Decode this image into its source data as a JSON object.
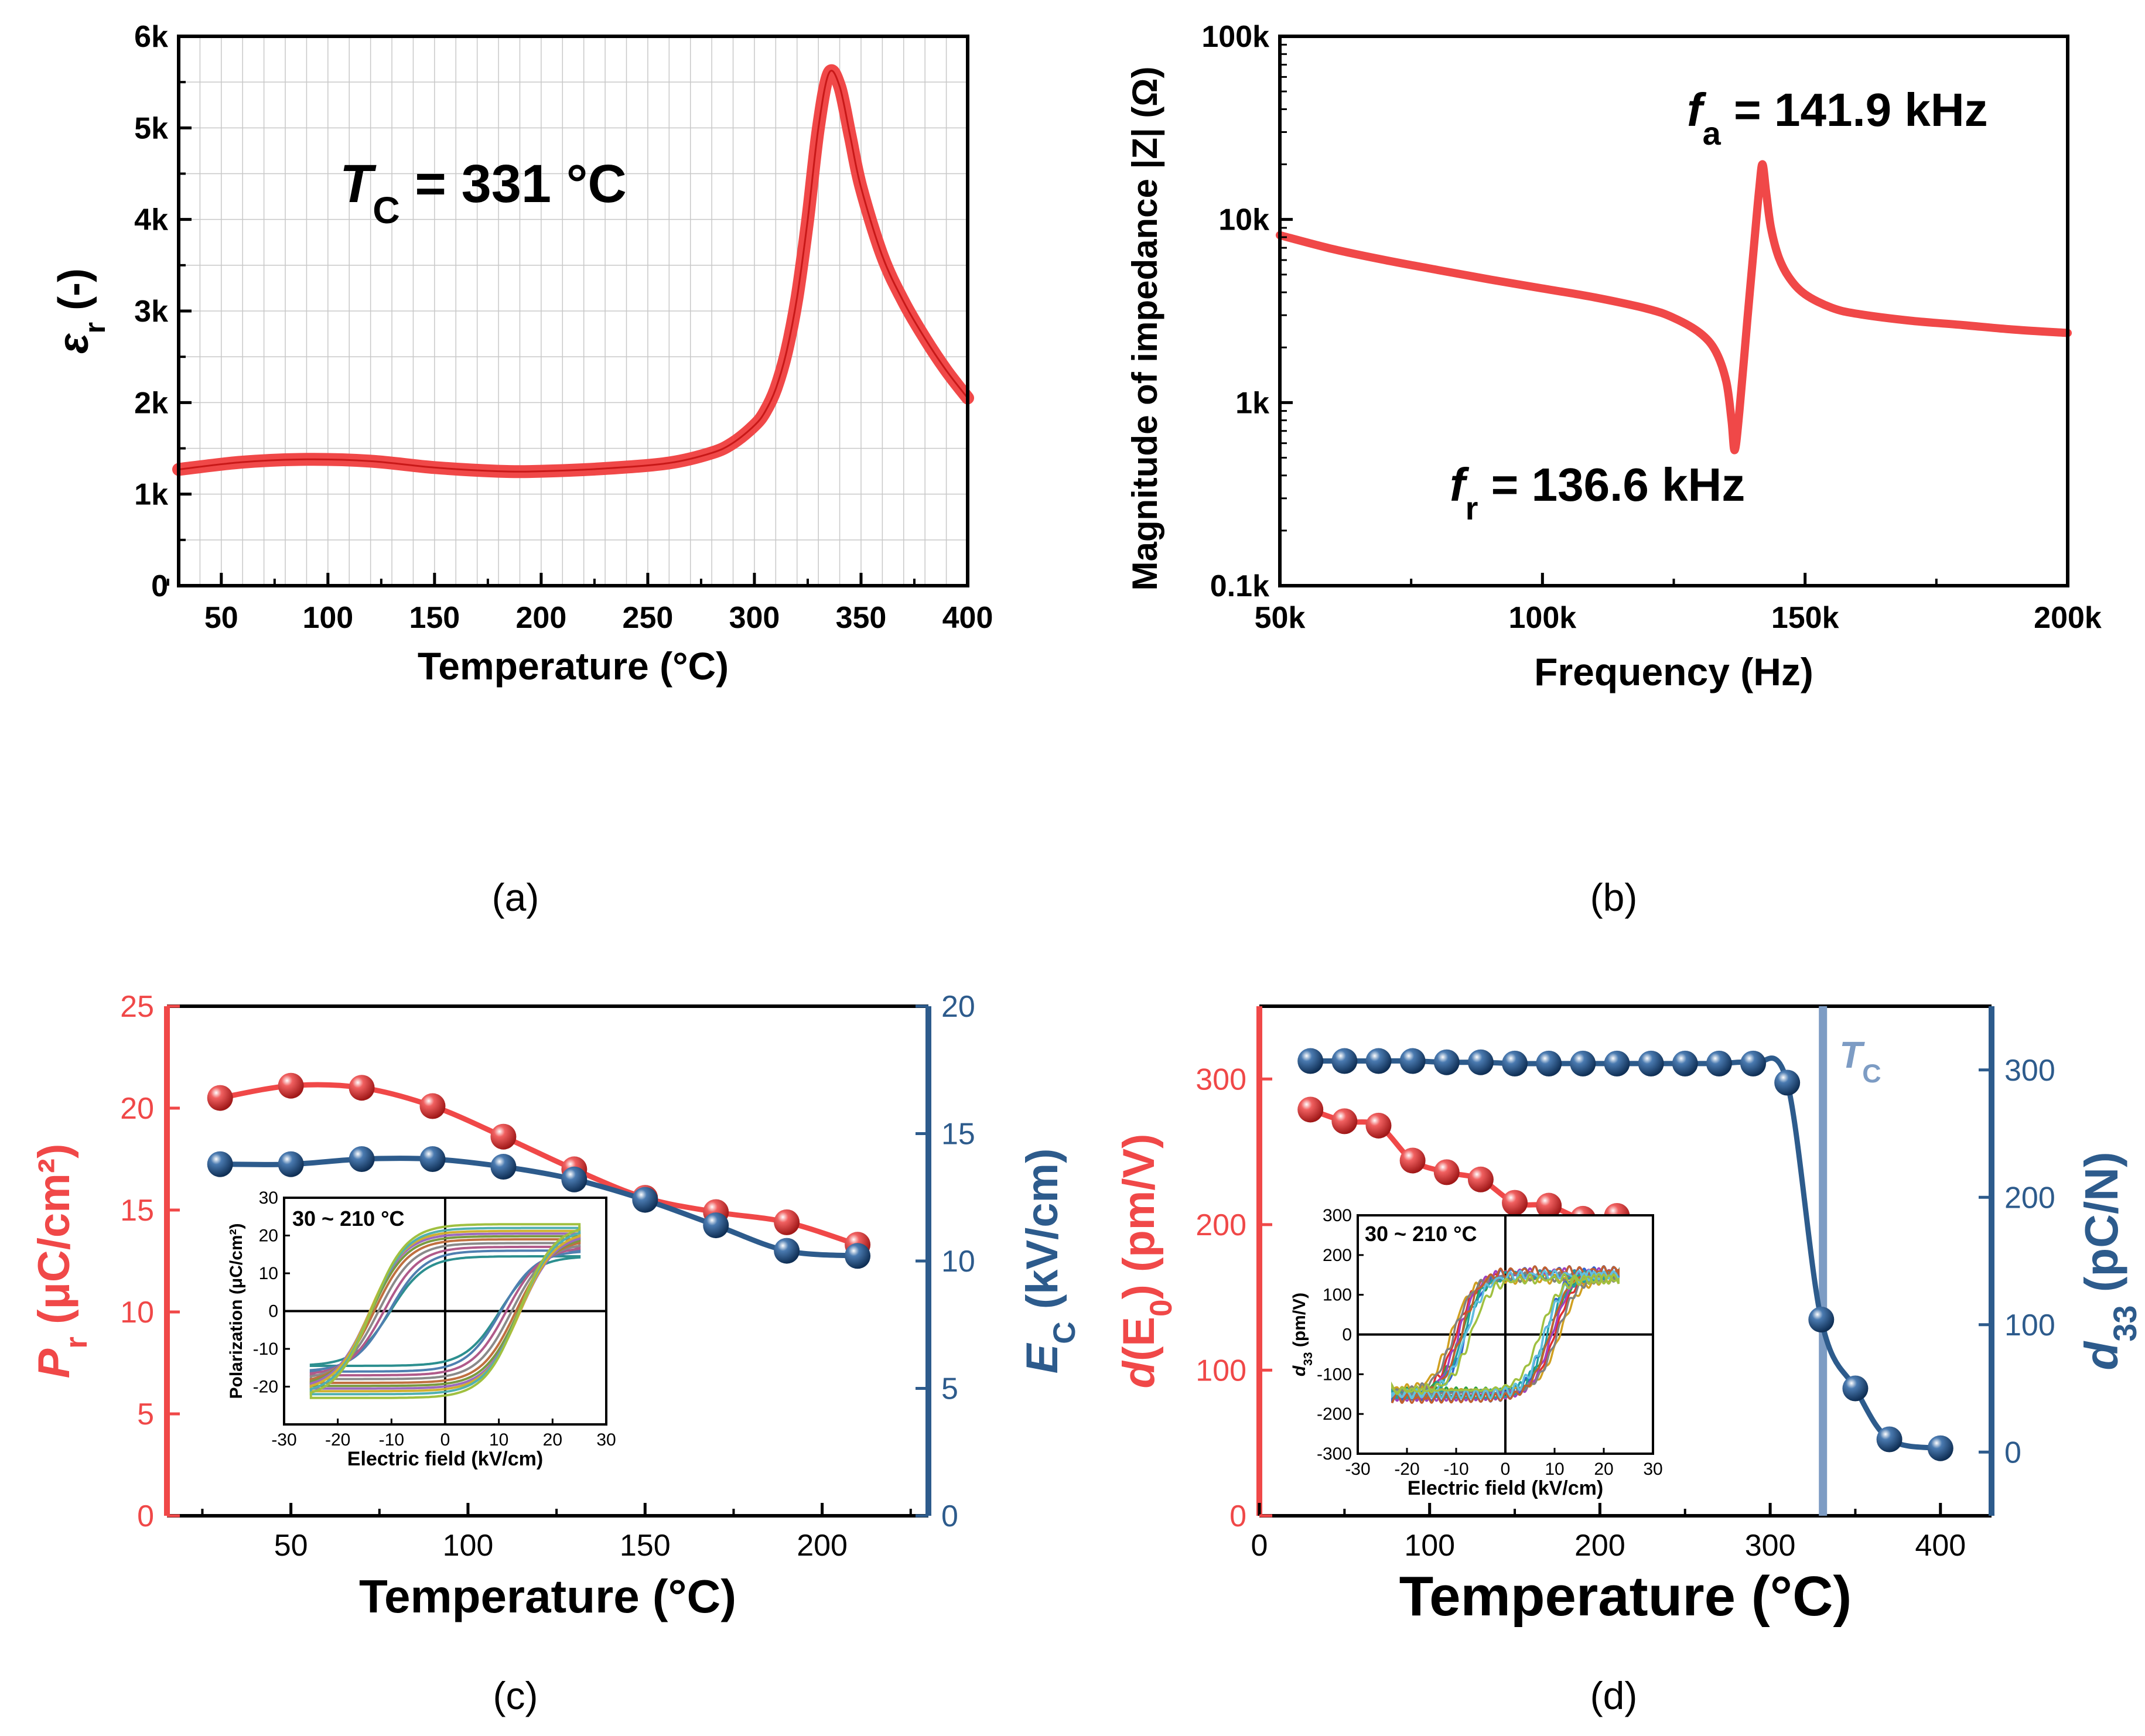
{
  "captions": {
    "a": "(a)",
    "b": "(b)",
    "c": "(c)",
    "d": "(d)"
  },
  "colors": {
    "red": "#f04848",
    "blue": "#2d5b8c",
    "tc_line": "#7d9cc4",
    "grid": "#c8c8c8"
  },
  "chart_data": [
    {
      "id": "a",
      "type": "line",
      "xlabel": "Temperature (°C)",
      "ylabel_symbol": "ε",
      "ylabel_sub": "r",
      "ylabel_rest": " (-)",
      "xlim": [
        30,
        400
      ],
      "ylim": [
        0,
        6000
      ],
      "xticks": [
        50,
        100,
        150,
        200,
        250,
        300,
        350,
        400
      ],
      "xtick_labels": [
        "50",
        "100",
        "150",
        "200",
        "250",
        "300",
        "350",
        "400"
      ],
      "yticks": [
        0,
        1000,
        2000,
        3000,
        4000,
        5000,
        6000
      ],
      "ytick_labels": [
        "0",
        "1k",
        "2k",
        "3k",
        "4k",
        "5k",
        "6k"
      ],
      "grid": true,
      "annotation": {
        "sym": "T",
        "sub": "C",
        "rest": " = 331 °C"
      },
      "series": [
        {
          "name": "εr",
          "x": [
            30,
            60,
            90,
            120,
            150,
            180,
            200,
            230,
            260,
            280,
            290,
            300,
            305,
            310,
            315,
            320,
            325,
            330,
            335,
            340,
            345,
            350,
            360,
            370,
            380,
            390,
            400
          ],
          "y": [
            1270,
            1350,
            1380,
            1360,
            1290,
            1250,
            1250,
            1280,
            1340,
            1450,
            1560,
            1750,
            1900,
            2150,
            2550,
            3150,
            4000,
            5000,
            5600,
            5450,
            4900,
            4350,
            3600,
            3100,
            2700,
            2350,
            2050
          ]
        }
      ]
    },
    {
      "id": "b",
      "type": "line",
      "xlabel": "Frequency (Hz)",
      "ylabel": "Magnitude of impedance |Z| (Ω)",
      "xlim": [
        50000,
        200000
      ],
      "ylim": [
        100,
        100000
      ],
      "yscale": "log",
      "xticks": [
        50000,
        100000,
        150000,
        200000
      ],
      "xtick_labels": [
        "50k",
        "100k",
        "150k",
        "200k"
      ],
      "yticks": [
        100,
        1000,
        10000,
        100000
      ],
      "ytick_labels": [
        "0.1k",
        "1k",
        "10k",
        "100k"
      ],
      "annotations": [
        {
          "sym": "f",
          "sub": "a",
          "rest": " = 141.9 kHz"
        },
        {
          "sym": "f",
          "sub": "r",
          "rest": " = 136.6 kHz"
        }
      ],
      "series": [
        {
          "name": "|Z|",
          "x": [
            50000,
            60000,
            70000,
            80000,
            90000,
            100000,
            110000,
            120000,
            125000,
            130000,
            133000,
            135000,
            136000,
            136600,
            137500,
            139000,
            140500,
            141300,
            141900,
            142600,
            143500,
            145000,
            147000,
            150000,
            155000,
            160000,
            170000,
            180000,
            190000,
            200000
          ],
          "y": [
            8200,
            6900,
            6000,
            5300,
            4700,
            4200,
            3750,
            3250,
            2900,
            2400,
            1900,
            1300,
            800,
            550,
            900,
            2800,
            8500,
            15000,
            20000,
            14000,
            9000,
            6200,
            4800,
            3900,
            3300,
            3050,
            2800,
            2650,
            2500,
            2400
          ]
        }
      ]
    },
    {
      "id": "c",
      "type": "line",
      "xlabel": "Temperature (°C)",
      "xlim": [
        15,
        230
      ],
      "xticks": [
        50,
        100,
        150,
        200
      ],
      "xtick_labels": [
        "50",
        "100",
        "150",
        "200"
      ],
      "y_left": {
        "sym": "P",
        "sub": "r",
        "rest": " (μC/cm²)",
        "lim": [
          0,
          25
        ],
        "ticks": [
          0,
          5,
          10,
          15,
          20,
          25
        ],
        "tick_labels": [
          "0",
          "5",
          "10",
          "15",
          "20",
          "25"
        ]
      },
      "y_right": {
        "sym": "E",
        "sub": "C",
        "rest": " (kV/cm)",
        "lim": [
          0,
          20
        ],
        "ticks": [
          0,
          5,
          10,
          15,
          20
        ],
        "tick_labels": [
          "0",
          "5",
          "10",
          "15",
          "20"
        ]
      },
      "series": [
        {
          "name": "Pr",
          "axis": "left",
          "x": [
            30,
            50,
            70,
            90,
            110,
            130,
            150,
            170,
            190,
            210
          ],
          "y": [
            20.5,
            21.1,
            21.0,
            20.1,
            18.6,
            17.0,
            15.6,
            14.9,
            14.4,
            13.3
          ]
        },
        {
          "name": "Ec",
          "axis": "right",
          "x": [
            30,
            50,
            70,
            90,
            110,
            130,
            150,
            170,
            190,
            210
          ],
          "y": [
            13.8,
            13.8,
            14.0,
            14.0,
            13.7,
            13.2,
            12.4,
            11.4,
            10.4,
            10.2
          ]
        }
      ],
      "inset": {
        "type": "line",
        "label": "30 ~ 210 °C",
        "xlabel": "Electric field (kV/cm)",
        "ylabel": "Polarization (μC/cm²)",
        "xlim": [
          -30,
          30
        ],
        "ylim": [
          -30,
          30
        ],
        "xticks": [
          -30,
          -20,
          -10,
          0,
          10,
          20,
          30
        ],
        "xtick_labels": [
          "-30",
          "-20",
          "-10",
          "0",
          "10",
          "20",
          "30"
        ],
        "yticks": [
          -20,
          -10,
          0,
          10,
          20,
          30
        ],
        "ytick_labels": [
          "-20",
          "-10",
          "0",
          "10",
          "20",
          "30"
        ],
        "loop_colors": [
          "#2c8f8f",
          "#4f7fb0",
          "#b05a8a",
          "#8a8a8a",
          "#c07040",
          "#7a9a40",
          "#9a6ac0",
          "#d0b030",
          "#50b0b0",
          "#a0c040"
        ],
        "loop_ps": [
          14.5,
          16.0,
          17.0,
          18.0,
          19.0,
          19.8,
          20.5,
          21.2,
          22.0,
          23.0
        ],
        "loop_ec": [
          10.2,
          10.4,
          11.4,
          12.4,
          13.2,
          13.7,
          14.0,
          14.0,
          13.8,
          13.8
        ]
      }
    },
    {
      "id": "d",
      "type": "line",
      "xlabel": "Temperature (°C)",
      "xlim": [
        0,
        430
      ],
      "xticks": [
        0,
        100,
        200,
        300,
        400
      ],
      "xtick_labels": [
        "0",
        "100",
        "200",
        "300",
        "400"
      ],
      "y_left": {
        "sym": "d",
        "rest": "(E",
        "sub": "0",
        "rest2": ") (pm/V)",
        "lim": [
          0,
          350
        ],
        "ticks": [
          0,
          100,
          200,
          300
        ],
        "tick_labels": [
          "0",
          "100",
          "200",
          "300"
        ]
      },
      "y_right": {
        "sym": "d",
        "sub": "33",
        "rest": " (pC/N)",
        "lim": [
          -50,
          350
        ],
        "ticks": [
          0,
          100,
          200,
          300
        ],
        "tick_labels": [
          "0",
          "100",
          "200",
          "300"
        ]
      },
      "vline": {
        "x": 331,
        "sym": "T",
        "sub": "C"
      },
      "series": [
        {
          "name": "d(E0)",
          "axis": "left",
          "x": [
            30,
            50,
            70,
            90,
            110,
            130,
            150,
            170,
            190,
            210
          ],
          "y": [
            279,
            271,
            268,
            244,
            236,
            231,
            215,
            213,
            204,
            206
          ]
        },
        {
          "name": "d33",
          "axis": "right",
          "x": [
            30,
            50,
            70,
            90,
            110,
            130,
            150,
            170,
            190,
            210,
            230,
            250,
            270,
            290,
            310,
            330,
            350,
            370,
            400
          ],
          "y": [
            307,
            307,
            307,
            307,
            306,
            306,
            305,
            305,
            305,
            305,
            305,
            305,
            305,
            305,
            290,
            104,
            50,
            10,
            3
          ]
        }
      ],
      "inset": {
        "type": "line",
        "label": "30 ~ 210 °C",
        "xlabel": "Electric field (kV/cm)",
        "ylabel": "d33 (pm/V)",
        "ylabel_sym": "d",
        "ylabel_sub": "33",
        "ylabel_rest": " (pm/V)",
        "xlim": [
          -30,
          30
        ],
        "ylim": [
          -300,
          300
        ],
        "xticks": [
          -30,
          -20,
          -10,
          0,
          10,
          20,
          30
        ],
        "xtick_labels": [
          "-30",
          "-20",
          "-10",
          "0",
          "10",
          "20",
          "30"
        ],
        "yticks": [
          -300,
          -200,
          -100,
          0,
          100,
          200,
          300
        ],
        "ytick_labels": [
          "-300",
          "-200",
          "-100",
          "0",
          "100",
          "200",
          "300"
        ],
        "loop_colors": [
          "#e03030",
          "#30a040",
          "#3060d0",
          "#d0a020",
          "#a040c0",
          "#20a0a0",
          "#808080",
          "#c06030",
          "#60c0e0",
          "#a0c040"
        ],
        "loop_amp": [
          150,
          145,
          160,
          140,
          155,
          150,
          145,
          160,
          150,
          140
        ],
        "loop_ec": [
          10.0,
          9.0,
          8.0,
          11.0,
          9.5,
          8.5,
          10.5,
          9.0,
          8.0,
          7.0
        ]
      }
    }
  ]
}
